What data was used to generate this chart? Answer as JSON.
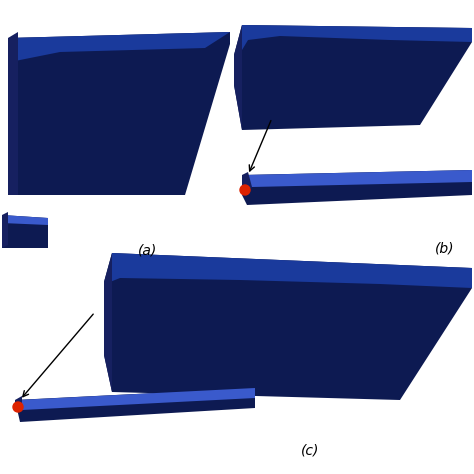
{
  "bg_color": "#ffffff",
  "dark_blue": "#0d1a52",
  "mid_blue": "#1a3a9c",
  "light_blue": "#3a5acc",
  "side_blue": "#162060",
  "red_orange": "#dd2200",
  "label_a": "(a)",
  "label_b": "(b)",
  "label_c": "(c)",
  "label_fontsize": 10,
  "fig_width": 4.74,
  "fig_height": 4.74,
  "dpi": 100
}
